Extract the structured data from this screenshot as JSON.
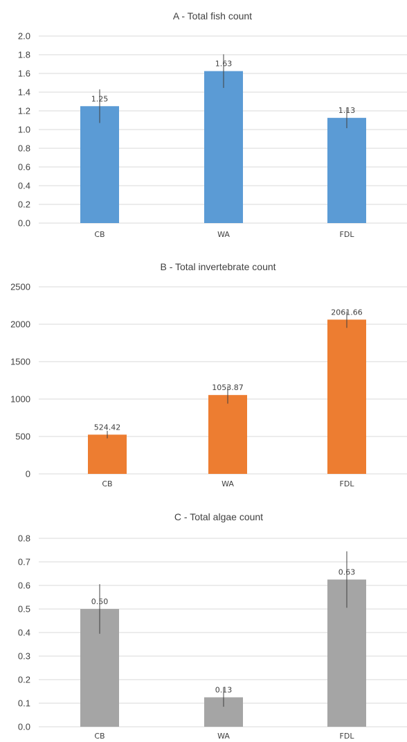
{
  "chart_data": [
    {
      "type": "bar",
      "title": "A - Total fish count",
      "categories": [
        "CB",
        "WA",
        "FDL"
      ],
      "values": [
        1.25,
        1.625,
        1.125
      ],
      "value_labels": [
        "1.25",
        "1.63",
        "1.13"
      ],
      "errors": [
        0.18,
        0.18,
        0.11
      ],
      "ylim": [
        0,
        2.0
      ],
      "yticks": [
        "0.0",
        "0.2",
        "0.4",
        "0.6",
        "0.8",
        "1.0",
        "1.2",
        "1.4",
        "1.6",
        "1.8",
        "2.0"
      ],
      "color": "#5b9bd5",
      "grid": true
    },
    {
      "type": "bar",
      "title": "B - Total invertebrate count",
      "categories": [
        "CB",
        "WA",
        "FDL"
      ],
      "values": [
        524.42,
        1053.87,
        2061.66
      ],
      "value_labels": [
        "524.42",
        "1053.87",
        "2061.66"
      ],
      "errors": [
        50,
        115,
        110
      ],
      "ylim": [
        0,
        2500
      ],
      "yticks": [
        "0",
        "500",
        "1000",
        "1500",
        "2000",
        "2500"
      ],
      "color": "#ed7d31",
      "grid": true
    },
    {
      "type": "bar",
      "title": "C - Total algae count",
      "categories": [
        "CB",
        "WA",
        "FDL"
      ],
      "values": [
        0.5,
        0.125,
        0.625
      ],
      "value_labels": [
        "0.50",
        "0.13",
        "0.63"
      ],
      "errors": [
        0.105,
        0.04,
        0.12
      ],
      "ylim": [
        0,
        0.8
      ],
      "yticks": [
        "0.0",
        "0.1",
        "0.2",
        "0.3",
        "0.4",
        "0.5",
        "0.6",
        "0.7",
        "0.8"
      ],
      "color": "#a5a5a5",
      "grid": true
    }
  ]
}
